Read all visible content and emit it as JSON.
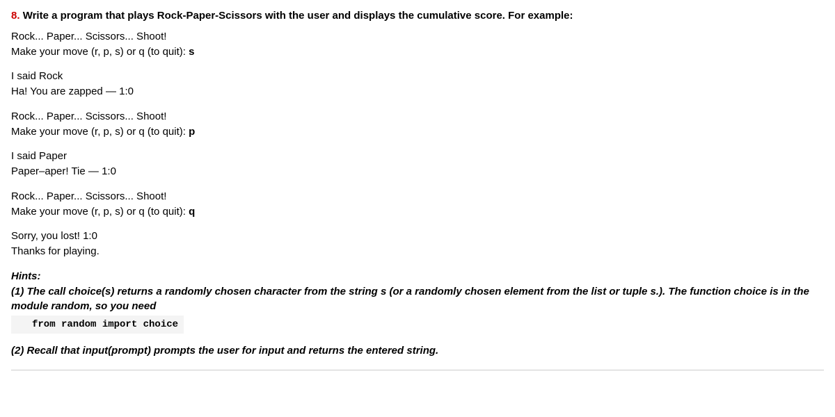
{
  "question": {
    "number": "8.",
    "title": "Write a program that plays Rock-Paper-Scissors with the user and displays the cumulative score. For example:"
  },
  "round1": {
    "intro": "Rock... Paper... Scissors... Shoot!",
    "prompt": "Make your move (r, p, s) or q (to quit): ",
    "input": "s",
    "reply": "I said Rock",
    "result": "Ha! You are zapped — 1:0"
  },
  "round2": {
    "intro": "Rock... Paper... Scissors... Shoot!",
    "prompt": "Make your move (r, p, s) or q (to quit): ",
    "input": "p",
    "reply": "I said Paper",
    "result": "Paper–aper! Tie — 1:0"
  },
  "round3": {
    "intro": "Rock... Paper... Scissors... Shoot!",
    "prompt": "Make your move (r, p, s) or q (to quit): ",
    "input": "q",
    "end1": "Sorry, you lost! 1:0",
    "end2": "Thanks for playing."
  },
  "hints": {
    "label": "Hints:",
    "h1a": "(1) The call choice(s) returns a randomly chosen character from the string s (or a randomly chosen element from the list or tuple s.). The function choice is in the module random, so you need",
    "code": "from random import choice",
    "h2": "(2) Recall that input(prompt) prompts the user for input and returns the entered string."
  }
}
